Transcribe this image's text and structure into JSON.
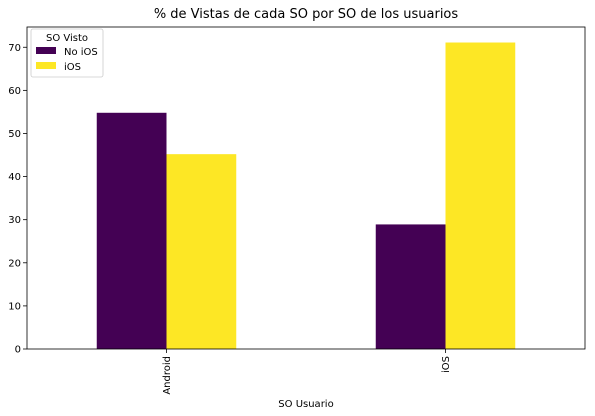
{
  "chart_data": {
    "type": "bar",
    "title": "% de Vistas de cada SO por SO de los usuarios",
    "xlabel": "SO Usuario",
    "ylabel": "",
    "categories": [
      "Android",
      "iOS"
    ],
    "series": [
      {
        "name": "No iOS",
        "values": [
          54.8,
          28.9
        ],
        "color": "#440154"
      },
      {
        "name": "iOS",
        "values": [
          45.2,
          71.1
        ],
        "color": "#fde725"
      }
    ],
    "ylim": [
      0,
      74.7
    ],
    "yticks": [
      0,
      10,
      20,
      30,
      40,
      50,
      60,
      70
    ],
    "grid": false,
    "legend": {
      "title": "SO Visto",
      "placement": "top-left"
    }
  }
}
